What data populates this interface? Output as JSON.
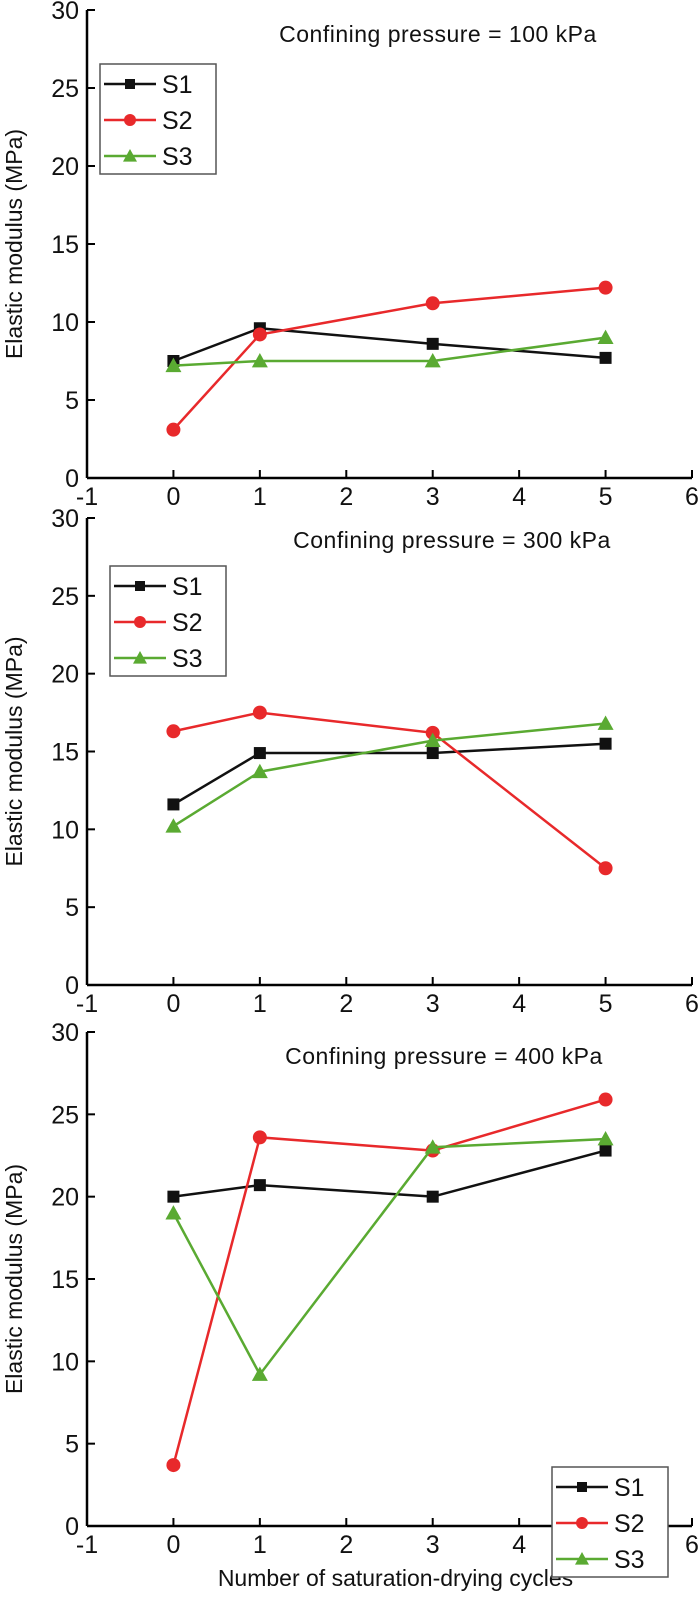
{
  "chart_data": [
    {
      "type": "line",
      "title": "Confining pressure = 100 kPa",
      "xlabel": "",
      "ylabel": "Elastic modulus (MPa)",
      "x": [
        0,
        1,
        3,
        5
      ],
      "xlim": [
        -1,
        6
      ],
      "ylim": [
        0,
        30
      ],
      "xticks": [
        "-1",
        "0",
        "1",
        "2",
        "3",
        "4",
        "5",
        "6"
      ],
      "yticks": [
        "0",
        "5",
        "10",
        "15",
        "20",
        "25",
        "30"
      ],
      "legend_position": "top-left",
      "series": [
        {
          "name": "S1",
          "color": "#111111",
          "marker": "square",
          "values": [
            7.5,
            9.6,
            8.6,
            7.7
          ]
        },
        {
          "name": "S2",
          "color": "#e8292b",
          "marker": "circle",
          "values": [
            3.1,
            9.2,
            11.2,
            12.2
          ]
        },
        {
          "name": "S3",
          "color": "#5aaa32",
          "marker": "triangle",
          "values": [
            7.2,
            7.5,
            7.5,
            9.0
          ]
        }
      ]
    },
    {
      "type": "line",
      "title": "Confining pressure = 300 kPa",
      "xlabel": "",
      "ylabel": "Elastic modulus (MPa)",
      "x": [
        0,
        1,
        3,
        5
      ],
      "xlim": [
        -1,
        6
      ],
      "ylim": [
        0,
        30
      ],
      "xticks": [
        "-1",
        "0",
        "1",
        "2",
        "3",
        "4",
        "5",
        "6"
      ],
      "yticks": [
        "0",
        "5",
        "10",
        "15",
        "20",
        "25",
        "30"
      ],
      "legend_position": "top-left",
      "series": [
        {
          "name": "S1",
          "color": "#111111",
          "marker": "square",
          "values": [
            11.6,
            14.9,
            14.9,
            15.5
          ]
        },
        {
          "name": "S2",
          "color": "#e8292b",
          "marker": "circle",
          "values": [
            16.3,
            17.5,
            16.2,
            7.5
          ]
        },
        {
          "name": "S3",
          "color": "#5aaa32",
          "marker": "triangle",
          "values": [
            10.2,
            13.7,
            15.7,
            16.8
          ]
        }
      ]
    },
    {
      "type": "line",
      "title": "Confining pressure = 400 kPa",
      "xlabel": "Number of saturation-drying cycles",
      "ylabel": "Elastic modulus (MPa)",
      "x": [
        0,
        1,
        3,
        5
      ],
      "xlim": [
        -1,
        6
      ],
      "ylim": [
        0,
        30
      ],
      "xticks": [
        "-1",
        "0",
        "1",
        "2",
        "3",
        "4",
        "5",
        "6"
      ],
      "yticks": [
        "0",
        "5",
        "10",
        "15",
        "20",
        "25",
        "30"
      ],
      "legend_position": "bottom-right",
      "series": [
        {
          "name": "S1",
          "color": "#111111",
          "marker": "square",
          "values": [
            20.0,
            20.7,
            20.0,
            22.8
          ]
        },
        {
          "name": "S2",
          "color": "#e8292b",
          "marker": "circle",
          "values": [
            3.7,
            23.6,
            22.8,
            25.9
          ]
        },
        {
          "name": "S3",
          "color": "#5aaa32",
          "marker": "triangle",
          "values": [
            19.0,
            9.2,
            23.0,
            23.5
          ]
        }
      ]
    }
  ]
}
